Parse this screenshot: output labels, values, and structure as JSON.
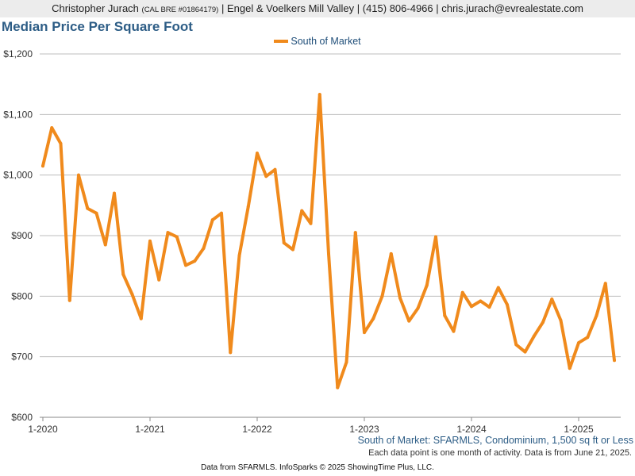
{
  "header": {
    "agent_name": "Christopher Jurach",
    "license": "(CAL BRE #01864179)",
    "rest": "| Engel & Voelkers Mill Valley | (415) 806-4966 | chris.jurach@evrealestate.com"
  },
  "footer": {
    "note1": "South of Market: SFARMLS, Condominium, 1,500 sq ft or Less",
    "note2": "Each data point is one month of activity. Data is from June 21, 2025.",
    "source": "Data from SFARMLS. InfoSparks © 2025 ShowingTime Plus, LLC."
  },
  "chart_data": {
    "type": "line",
    "title": "Median Price Per Square Foot",
    "xlabel": "",
    "ylabel": "",
    "ylim": [
      600,
      1200
    ],
    "y_ticks": [
      "$600",
      "$700",
      "$800",
      "$900",
      "$1,000",
      "$1,100",
      "$1,200"
    ],
    "y_tick_values": [
      600,
      700,
      800,
      900,
      1000,
      1100,
      1200
    ],
    "x_ticks": [
      "1-2020",
      "1-2021",
      "1-2022",
      "1-2023",
      "1-2024",
      "1-2025"
    ],
    "legend_position": "top-center",
    "grid": true,
    "color": "#f08a1c",
    "series": [
      {
        "name": "South of Market",
        "x": [
          "2020-01",
          "2020-02",
          "2020-03",
          "2020-04",
          "2020-05",
          "2020-06",
          "2020-07",
          "2020-08",
          "2020-09",
          "2020-10",
          "2020-11",
          "2020-12",
          "2021-01",
          "2021-02",
          "2021-03",
          "2021-04",
          "2021-05",
          "2021-06",
          "2021-07",
          "2021-08",
          "2021-09",
          "2021-10",
          "2021-11",
          "2021-12",
          "2022-01",
          "2022-02",
          "2022-03",
          "2022-04",
          "2022-05",
          "2022-06",
          "2022-07",
          "2022-08",
          "2022-09",
          "2022-10",
          "2022-11",
          "2022-12",
          "2023-01",
          "2023-02",
          "2023-03",
          "2023-04",
          "2023-05",
          "2023-06",
          "2023-07",
          "2023-08",
          "2023-09",
          "2023-10",
          "2023-11",
          "2023-12",
          "2024-01",
          "2024-02",
          "2024-03",
          "2024-04",
          "2024-05",
          "2024-06",
          "2024-07",
          "2024-08",
          "2024-09",
          "2024-10",
          "2024-11",
          "2024-12",
          "2025-01",
          "2025-02",
          "2025-03",
          "2025-04",
          "2025-05"
        ],
        "values": [
          1015,
          1078,
          1052,
          793,
          1000,
          945,
          937,
          885,
          970,
          836,
          803,
          763,
          891,
          827,
          905,
          898,
          851,
          858,
          879,
          926,
          937,
          707,
          867,
          948,
          1036,
          998,
          1009,
          888,
          877,
          941,
          920,
          1133,
          870,
          649,
          691,
          905,
          740,
          763,
          800,
          870,
          797,
          759,
          780,
          818,
          898,
          768,
          742,
          806,
          783,
          792,
          782,
          814,
          786,
          720,
          708,
          734,
          757,
          795,
          760,
          681,
          723,
          732,
          768,
          821,
          694
        ]
      }
    ]
  }
}
